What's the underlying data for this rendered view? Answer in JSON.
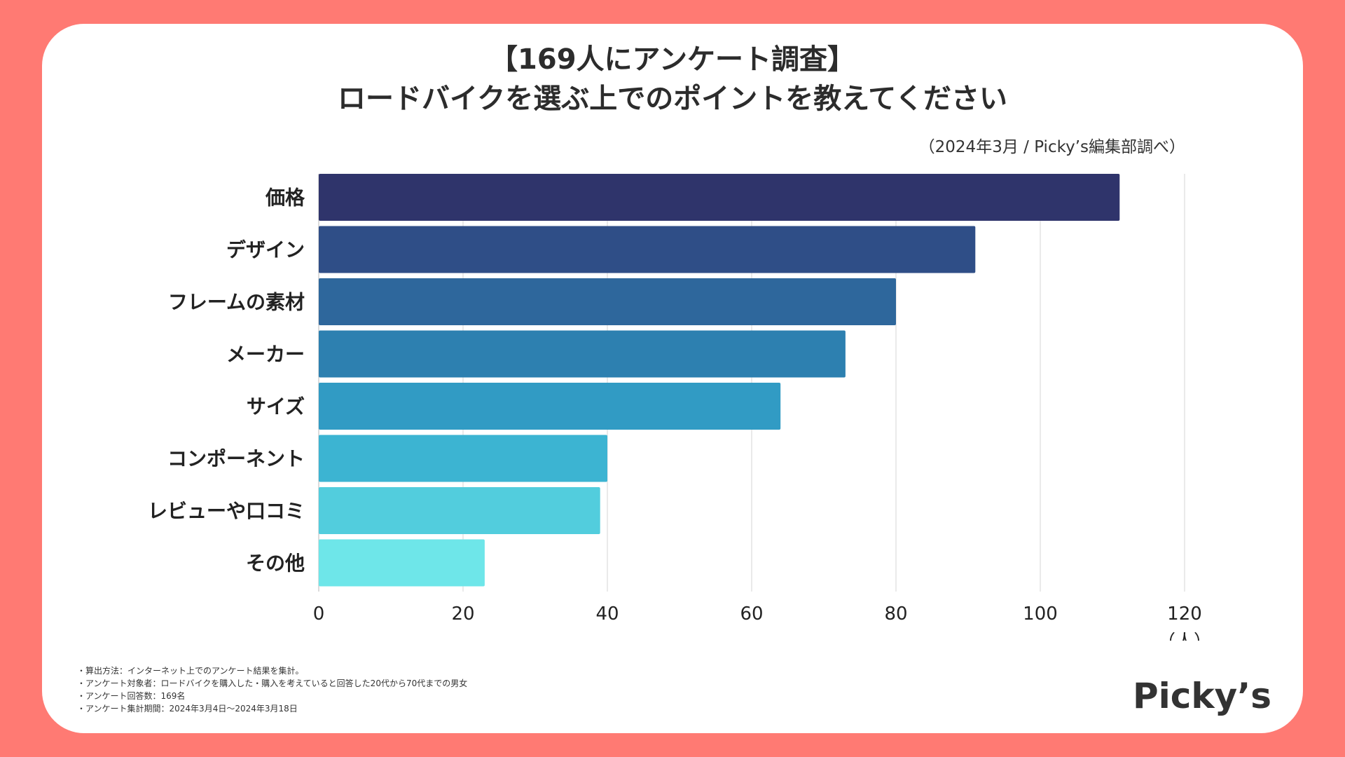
{
  "header": {
    "title_line1": "【169人にアンケート調査】",
    "title_line2": "ロードバイクを選ぶ上でのポイントを教えてください",
    "source": "（2024年3月 / Picky’s編集部調べ）"
  },
  "chart_data": {
    "type": "bar",
    "orientation": "horizontal",
    "categories": [
      "価格",
      "デザイン",
      "フレームの素材",
      "メーカー",
      "サイズ",
      "コンポーネント",
      "レビューや口コミ",
      "その他"
    ],
    "values": [
      111,
      91,
      80,
      73,
      64,
      40,
      39,
      23
    ],
    "bar_colors": [
      "#2f346b",
      "#2f4e87",
      "#2e679c",
      "#2d80b0",
      "#319bc4",
      "#3cb4d2",
      "#52cddd",
      "#6ee6e9"
    ],
    "x_ticks": [
      0,
      20,
      40,
      60,
      80,
      100,
      120
    ],
    "xlim": [
      0,
      120
    ],
    "x_unit": "（人）",
    "grid": true,
    "legend": "none"
  },
  "notes": [
    "・算出方法：インターネット上でのアンケート結果を集計。",
    "・アンケート対象者：ロードバイクを購入した・購入を考えていると回答した20代から70代までの男女",
    "・アンケート回答数：169名",
    "・アンケート集計期間：2024年3月4日〜2024年3月18日"
  ],
  "brand": {
    "logo_text": "Picky’s"
  },
  "colors": {
    "background": "#ff7a73",
    "card": "#ffffff",
    "text": "#2c2c2c"
  }
}
